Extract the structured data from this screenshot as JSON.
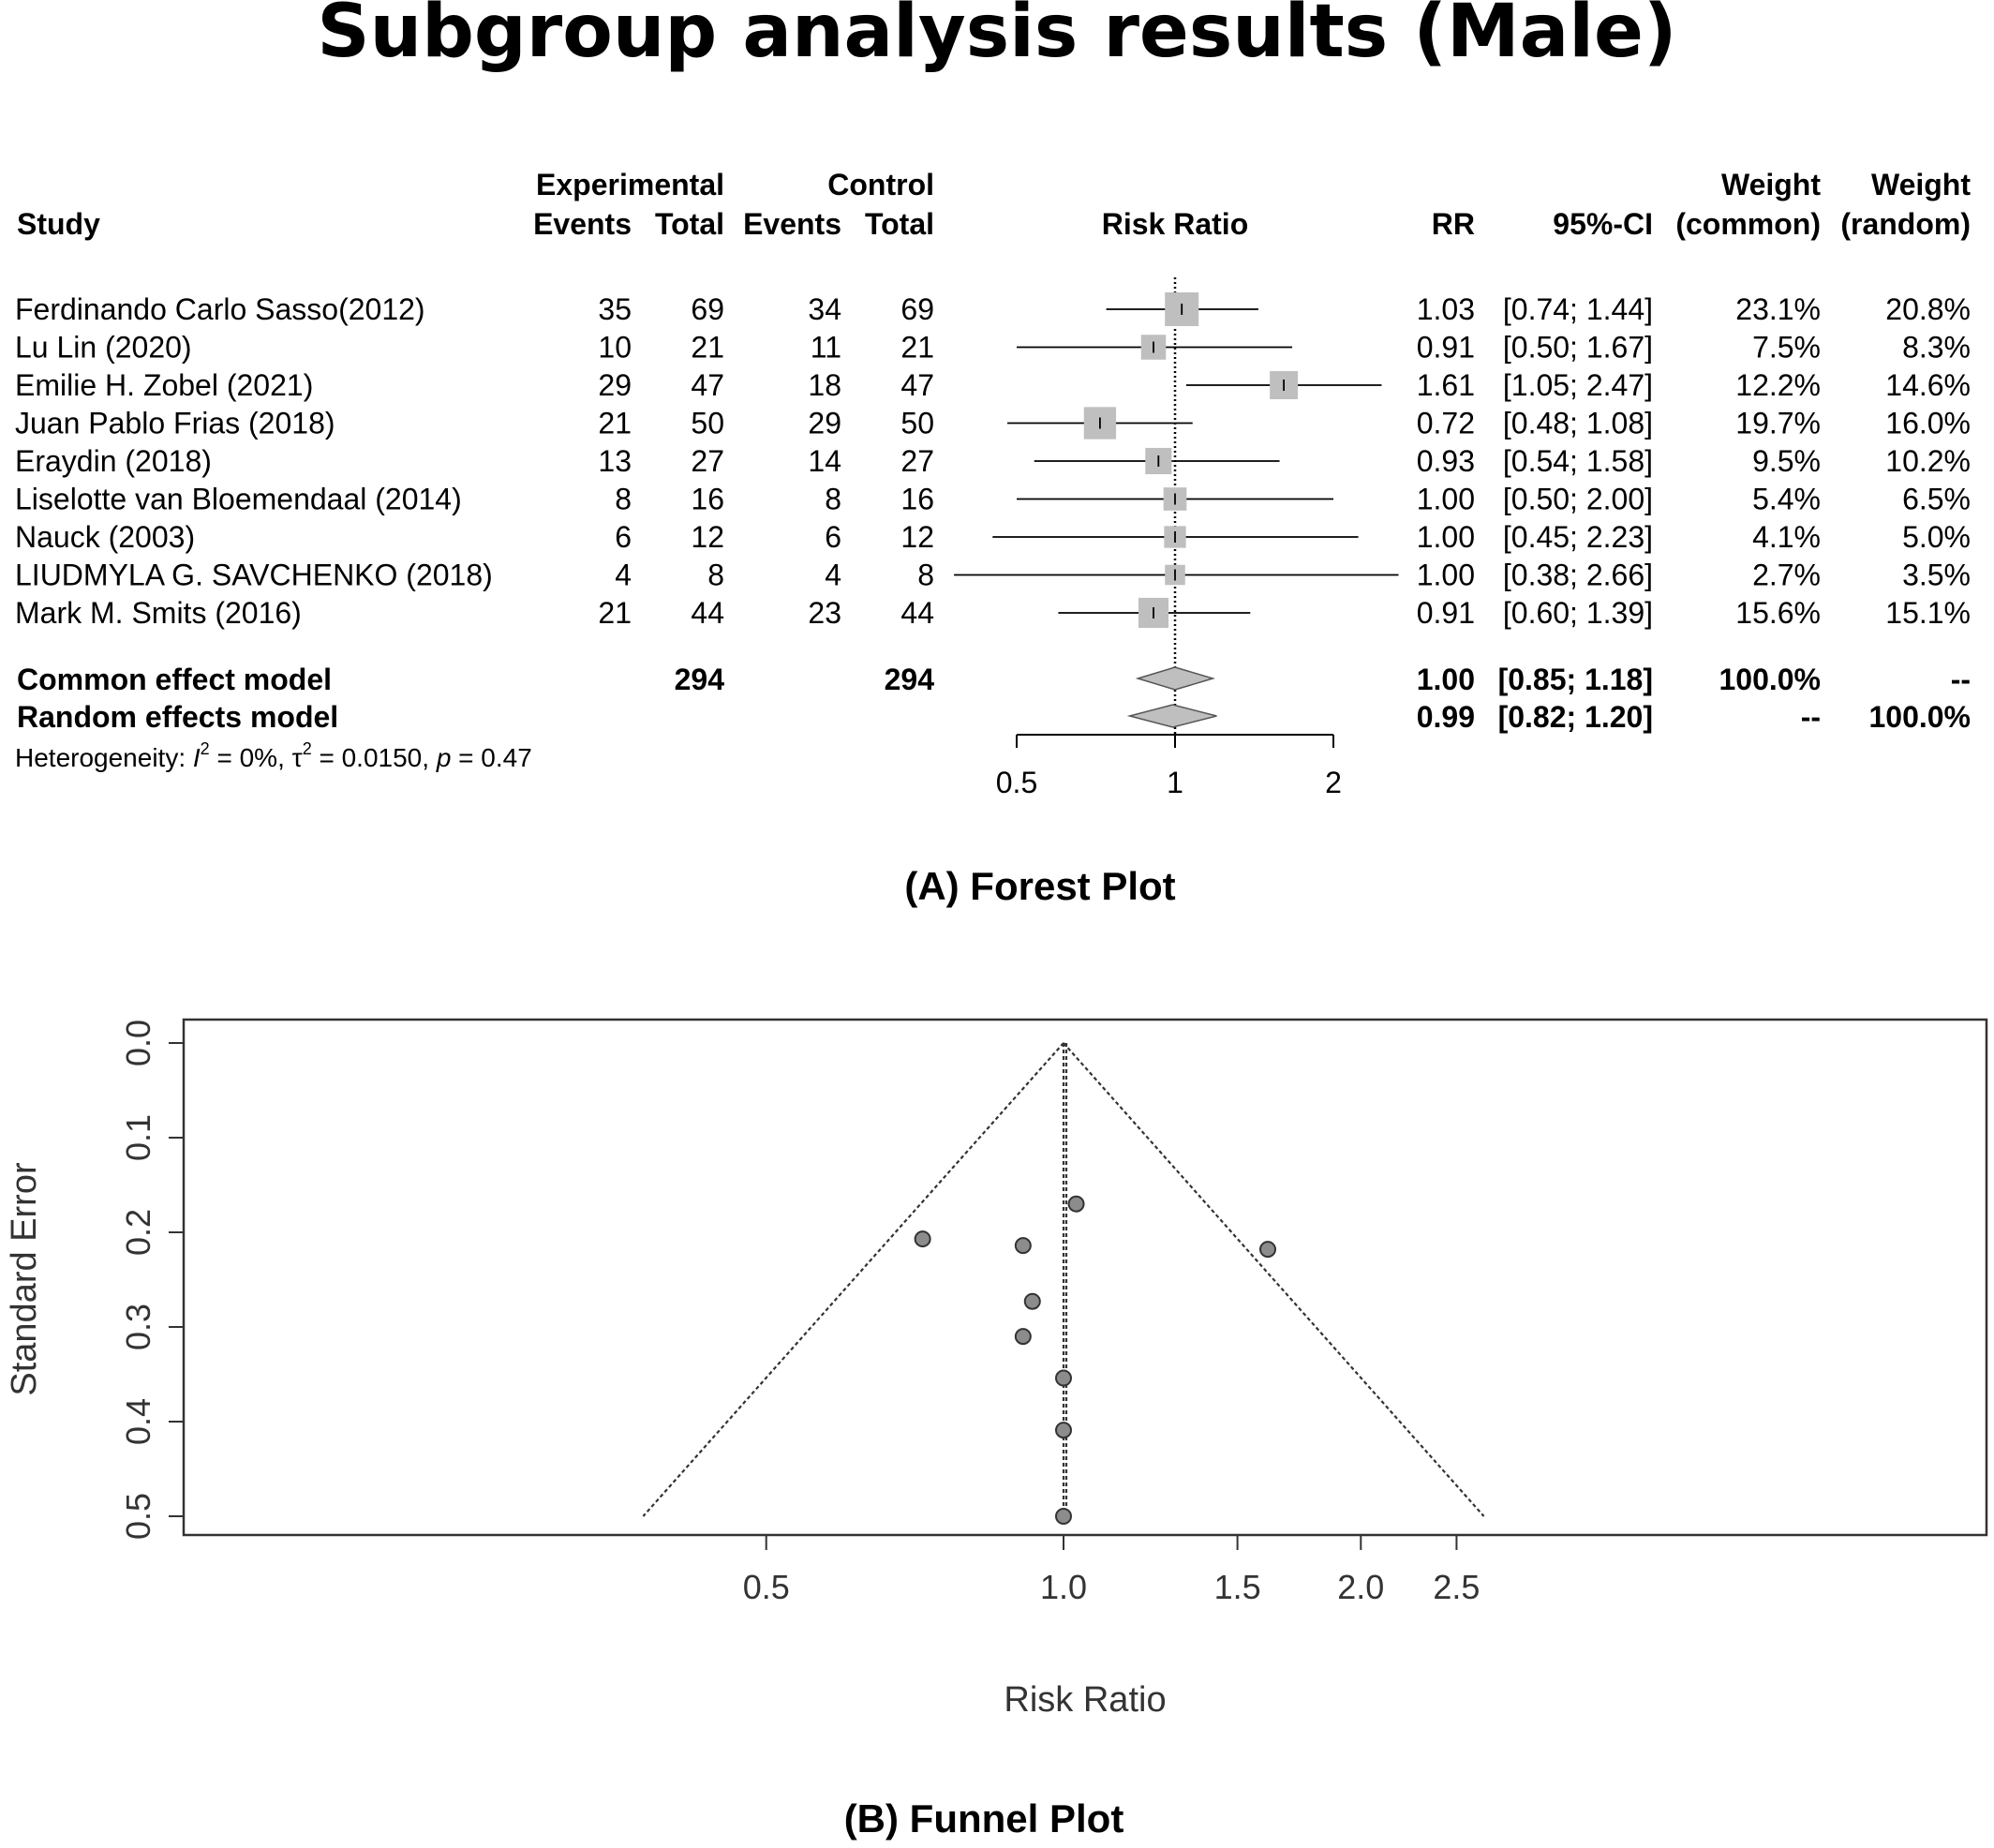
{
  "title": "Subgroup analysis results (Male)",
  "forest": {
    "caption": "(A) Forest Plot",
    "headers": {
      "study": "Study",
      "experimental": "Experimental",
      "control": "Control",
      "events": "Events",
      "total": "Total",
      "risk_ratio": "Risk Ratio",
      "rr": "RR",
      "ci": "95%-CI",
      "weight": "Weight",
      "weight_common": "(common)",
      "weight_random": "(random)"
    },
    "studies": [
      {
        "name": "Ferdinando Carlo Sasso(2012)",
        "e_events": "35",
        "e_total": "69",
        "c_events": "34",
        "c_total": "69",
        "rr": "1.03",
        "ci": "[0.74; 1.44]",
        "w_common": "23.1%",
        "w_random": "20.8%"
      },
      {
        "name": "Lu Lin (2020)",
        "e_events": "10",
        "e_total": "21",
        "c_events": "11",
        "c_total": "21",
        "rr": "0.91",
        "ci": "[0.50; 1.67]",
        "w_common": "7.5%",
        "w_random": "8.3%"
      },
      {
        "name": "Emilie H. Zobel (2021)",
        "e_events": "29",
        "e_total": "47",
        "c_events": "18",
        "c_total": "47",
        "rr": "1.61",
        "ci": "[1.05; 2.47]",
        "w_common": "12.2%",
        "w_random": "14.6%"
      },
      {
        "name": "Juan Pablo Frias (2018)",
        "e_events": "21",
        "e_total": "50",
        "c_events": "29",
        "c_total": "50",
        "rr": "0.72",
        "ci": "[0.48; 1.08]",
        "w_common": "19.7%",
        "w_random": "16.0%"
      },
      {
        "name": "Eraydin (2018)",
        "e_events": "13",
        "e_total": "27",
        "c_events": "14",
        "c_total": "27",
        "rr": "0.93",
        "ci": "[0.54; 1.58]",
        "w_common": "9.5%",
        "w_random": "10.2%"
      },
      {
        "name": "Liselotte van Bloemendaal (2014)",
        "e_events": "8",
        "e_total": "16",
        "c_events": "8",
        "c_total": "16",
        "rr": "1.00",
        "ci": "[0.50; 2.00]",
        "w_common": "5.4%",
        "w_random": "6.5%"
      },
      {
        "name": "Nauck (2003)",
        "e_events": "6",
        "e_total": "12",
        "c_events": "6",
        "c_total": "12",
        "rr": "1.00",
        "ci": "[0.45; 2.23]",
        "w_common": "4.1%",
        "w_random": "5.0%"
      },
      {
        "name": "LIUDMYLA G. SAVCHENKO (2018)",
        "e_events": "4",
        "e_total": "8",
        "c_events": "4",
        "c_total": "8",
        "rr": "1.00",
        "ci": "[0.38; 2.66]",
        "w_common": "2.7%",
        "w_random": "3.5%"
      },
      {
        "name": "Mark M. Smits (2016)",
        "e_events": "21",
        "e_total": "44",
        "c_events": "23",
        "c_total": "44",
        "rr": "0.91",
        "ci": "[0.60; 1.39]",
        "w_common": "15.6%",
        "w_random": "15.1%"
      }
    ],
    "common": {
      "label": "Common effect model",
      "e_total": "294",
      "c_total": "294",
      "rr": "1.00",
      "ci": "[0.85; 1.18]",
      "w_common": "100.0%",
      "w_random": "--"
    },
    "random": {
      "label": "Random effects model",
      "rr": "0.99",
      "ci": "[0.82; 1.20]",
      "w_common": "--",
      "w_random": "100.0%"
    },
    "heterogeneity": {
      "prefix": "Heterogeneity: ",
      "i2_sym": "I",
      "i2_val": " = 0%, ",
      "tau_sym": "τ",
      "tau_val": " = 0.0150, ",
      "p_sym": "p",
      "p_val": " = 0.47",
      "sup": "2"
    }
  },
  "funnel": {
    "caption": "(B) Funnel Plot"
  },
  "chart_data": [
    {
      "type": "forest",
      "scale": "log",
      "xlabel": "Risk Ratio",
      "xticks": [
        0.5,
        1,
        2
      ],
      "xtick_labels": [
        "0.5",
        "1",
        "2"
      ],
      "reference_line": 1,
      "studies": [
        {
          "name": "Ferdinando Carlo Sasso(2012)",
          "rr": 1.03,
          "lower": 0.74,
          "upper": 1.44,
          "weight": 23.1
        },
        {
          "name": "Lu Lin (2020)",
          "rr": 0.91,
          "lower": 0.5,
          "upper": 1.67,
          "weight": 7.5
        },
        {
          "name": "Emilie H. Zobel (2021)",
          "rr": 1.61,
          "lower": 1.05,
          "upper": 2.47,
          "weight": 12.2
        },
        {
          "name": "Juan Pablo Frias (2018)",
          "rr": 0.72,
          "lower": 0.48,
          "upper": 1.08,
          "weight": 19.7
        },
        {
          "name": "Eraydin (2018)",
          "rr": 0.93,
          "lower": 0.54,
          "upper": 1.58,
          "weight": 9.5
        },
        {
          "name": "Liselotte van Bloemendaal (2014)",
          "rr": 1.0,
          "lower": 0.5,
          "upper": 2.0,
          "weight": 5.4
        },
        {
          "name": "Nauck (2003)",
          "rr": 1.0,
          "lower": 0.45,
          "upper": 2.23,
          "weight": 4.1
        },
        {
          "name": "LIUDMYLA G. SAVCHENKO (2018)",
          "rr": 1.0,
          "lower": 0.38,
          "upper": 2.66,
          "weight": 2.7
        },
        {
          "name": "Mark M. Smits (2016)",
          "rr": 0.91,
          "lower": 0.6,
          "upper": 1.39,
          "weight": 15.6
        }
      ],
      "summaries": [
        {
          "name": "Common effect model",
          "rr": 1.0,
          "lower": 0.85,
          "upper": 1.18
        },
        {
          "name": "Random effects model",
          "rr": 0.99,
          "lower": 0.82,
          "upper": 1.2
        }
      ]
    },
    {
      "type": "scatter",
      "subtype": "funnel",
      "xlabel": "Risk Ratio",
      "ylabel": "Standard Error",
      "xscale": "log",
      "xticks": [
        0.5,
        1.0,
        1.5,
        2.0,
        2.5
      ],
      "xtick_labels": [
        "0.5",
        "1.0",
        "1.5",
        "2.0",
        "2.5"
      ],
      "yticks": [
        0.0,
        0.1,
        0.2,
        0.3,
        0.4,
        0.5
      ],
      "ytick_labels": [
        "0.0",
        "0.1",
        "0.2",
        "0.3",
        "0.4",
        "0.5"
      ],
      "ylim": [
        0.5,
        0.0
      ],
      "center": 1.0,
      "points": [
        {
          "x": 1.03,
          "y": 0.17
        },
        {
          "x": 0.91,
          "y": 0.214
        },
        {
          "x": 1.61,
          "y": 0.218
        },
        {
          "x": 0.72,
          "y": 0.207
        },
        {
          "x": 0.93,
          "y": 0.273
        },
        {
          "x": 1.0,
          "y": 0.354
        },
        {
          "x": 1.0,
          "y": 0.409
        },
        {
          "x": 1.0,
          "y": 0.5
        },
        {
          "x": 0.91,
          "y": 0.31
        }
      ]
    }
  ]
}
